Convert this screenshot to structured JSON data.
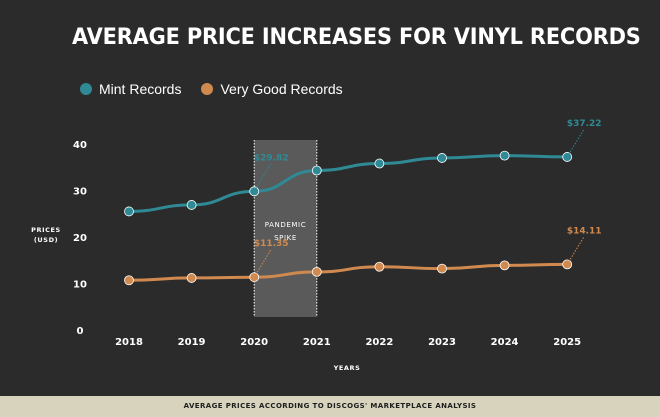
{
  "title": "AVERAGE PRICE INCREASES FOR VINYL RECORDS",
  "footer": "AVERAGE PRICES ACCORDING TO DISCOGS' MARKETPLACE ANALYSIS",
  "colors": {
    "background": "#2b2b2b",
    "mint": "#2f8a96",
    "very_good": "#d08a50",
    "shade": "#5a5a5a",
    "footer_bg": "#d8d3bd"
  },
  "chart_data": {
    "type": "line",
    "x": [
      "2018",
      "2019",
      "2020",
      "2021",
      "2022",
      "2023",
      "2024",
      "2025"
    ],
    "series": [
      {
        "name": "Mint Records",
        "values": [
          25.5,
          26.9,
          29.82,
          34.3,
          35.8,
          37.0,
          37.5,
          37.22
        ]
      },
      {
        "name": "Very Good Records",
        "values": [
          10.7,
          11.2,
          11.35,
          12.5,
          13.6,
          13.2,
          13.9,
          14.11
        ]
      }
    ],
    "xlabel": "YEARS",
    "ylabel_lines": [
      "PRICES",
      "(USD)"
    ],
    "ylim": [
      0,
      40
    ],
    "yticks": [
      "0",
      "10",
      "20",
      "30",
      "40"
    ],
    "grid": false,
    "legend": "top-left",
    "annotations": [
      {
        "series": 0,
        "index": 2,
        "text": "$29.82"
      },
      {
        "series": 0,
        "index": 7,
        "text": "$37.22"
      },
      {
        "series": 1,
        "index": 2,
        "text": "$11.35"
      },
      {
        "series": 1,
        "index": 7,
        "text": "$14.11"
      }
    ],
    "shaded_region": {
      "from": "2020",
      "to": "2021",
      "label_lines": [
        "PANDEMIC",
        "SPIKE"
      ]
    }
  }
}
